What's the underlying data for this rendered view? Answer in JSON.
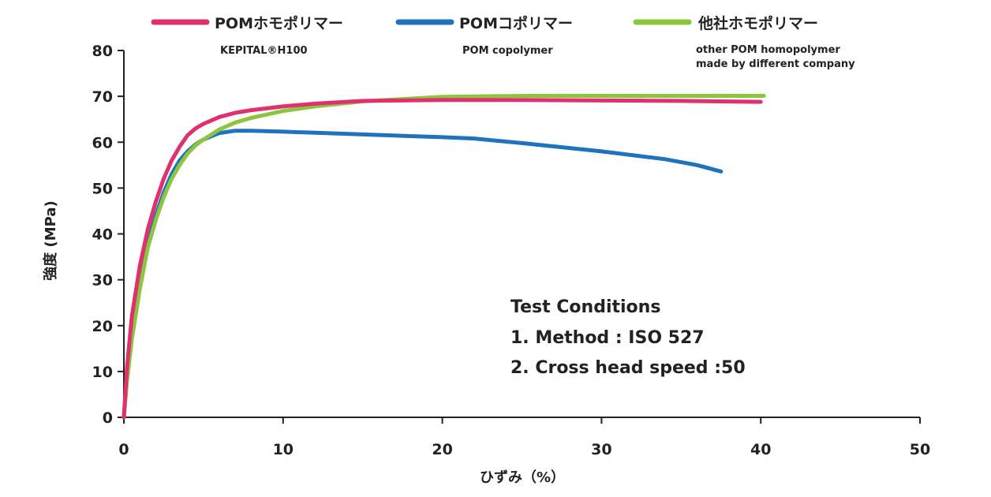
{
  "chart_data": {
    "type": "line",
    "xlabel": "ひずみ（%）",
    "ylabel": "強度 (MPa)",
    "xlim": [
      0,
      50
    ],
    "ylim": [
      0,
      80
    ],
    "x_ticks": [
      "0",
      "10",
      "20",
      "30",
      "40",
      "50"
    ],
    "y_ticks": [
      "0",
      "10",
      "20",
      "30",
      "40",
      "50",
      "60",
      "70",
      "80"
    ],
    "grid": false,
    "legend_position": "top",
    "series": [
      {
        "name": "POMホモポリマー",
        "subtitle": "KEPITAL®H100",
        "color": "#e0306e",
        "x": [
          0,
          0.2,
          0.5,
          1,
          1.5,
          2,
          2.5,
          3,
          3.5,
          4,
          4.5,
          5,
          6,
          7,
          8,
          10,
          12,
          15,
          20,
          25,
          30,
          35,
          40
        ],
        "y": [
          0,
          11,
          22,
          33,
          41,
          47,
          52,
          56,
          59,
          61.5,
          63,
          64,
          65.5,
          66.4,
          67,
          67.8,
          68.4,
          69,
          69.2,
          69.2,
          69.1,
          69,
          68.8
        ]
      },
      {
        "name": "POMコポリマー",
        "subtitle": "POM copolymer",
        "color": "#1e73be",
        "x": [
          0,
          0.2,
          0.5,
          1,
          1.5,
          2,
          2.5,
          3,
          3.5,
          4,
          4.5,
          5,
          6,
          7,
          8,
          10,
          15,
          20,
          22,
          25,
          30,
          34,
          36,
          37.5
        ],
        "y": [
          0,
          9,
          19,
          30,
          38,
          44,
          49,
          53,
          56,
          58,
          59.5,
          60.6,
          62,
          62.5,
          62.5,
          62.3,
          61.7,
          61.1,
          60.8,
          59.8,
          58,
          56.3,
          55,
          53.6
        ]
      },
      {
        "name": "他社ホモポリマー",
        "subtitle": "other POM homopolymer\nmade by different company",
        "color": "#8cc63f",
        "x": [
          0,
          0.2,
          0.5,
          1,
          1.5,
          2,
          2.5,
          3,
          3.5,
          4,
          4.5,
          5,
          6,
          7,
          8,
          10,
          12,
          15,
          20,
          25,
          30,
          35,
          40.2
        ],
        "y": [
          0,
          8,
          17,
          28,
          37,
          43,
          48,
          52,
          55,
          57.5,
          59.3,
          60.6,
          62.8,
          64.3,
          65.3,
          66.8,
          67.8,
          68.9,
          69.9,
          70.1,
          70.1,
          70.1,
          70.1
        ]
      }
    ],
    "annotations": [
      "Test Conditions",
      "1. Method : ISO 527",
      "2. Cross head speed :50"
    ]
  }
}
